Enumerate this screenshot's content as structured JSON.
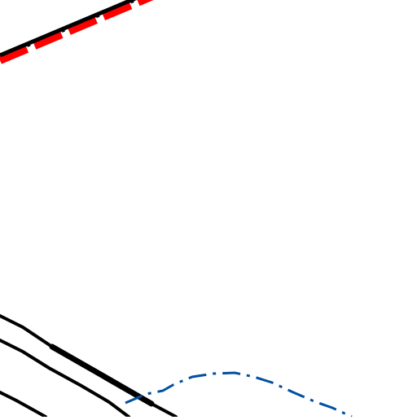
{
  "map": {
    "style": "map-tile",
    "background_color": "#ffffff",
    "colors": {
      "railway": "#000000",
      "railway_casing": "#ff0000",
      "road": "#000000",
      "boundary": "#0050a0"
    },
    "features": [
      {
        "name": "railway-line",
        "kind": "railway"
      },
      {
        "name": "road-upper",
        "kind": "road"
      },
      {
        "name": "road-middle",
        "kind": "road"
      },
      {
        "name": "road-lower",
        "kind": "road"
      },
      {
        "name": "road-thick-segment",
        "kind": "road"
      },
      {
        "name": "boundary-line",
        "kind": "boundary"
      }
    ]
  }
}
